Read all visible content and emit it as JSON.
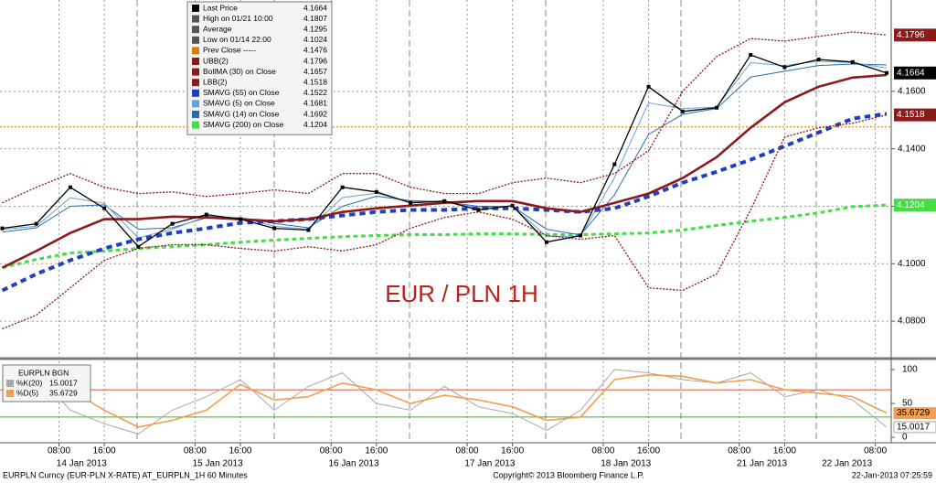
{
  "chart_data": {
    "type": "line",
    "title": "EUR / PLN 1H",
    "x": [
      -2,
      4,
      10,
      16,
      22,
      28,
      34,
      40,
      46,
      52,
      58,
      64,
      70,
      76,
      82,
      88,
      94,
      100,
      106,
      112,
      118,
      124,
      130,
      136,
      142,
      148,
      154
    ],
    "xlim": [
      -2.4,
      154.8
    ],
    "xticks": [
      {
        "value": 8,
        "label": "08:00"
      },
      {
        "value": 16,
        "label": "16:00"
      },
      {
        "value": 32,
        "label": "08:00"
      },
      {
        "value": 40,
        "label": "16:00"
      },
      {
        "value": 56,
        "label": "08:00"
      },
      {
        "value": 64,
        "label": "16:00"
      },
      {
        "value": 80,
        "label": "08:00"
      },
      {
        "value": 88,
        "label": "16:00"
      },
      {
        "value": 104,
        "label": "08:00"
      },
      {
        "value": 112,
        "label": "16:00"
      },
      {
        "value": 128,
        "label": "08:00"
      },
      {
        "value": 136,
        "label": "16:00"
      },
      {
        "value": 152,
        "label": "08:00"
      }
    ],
    "date_labels": [
      {
        "value": 12,
        "label": "14 Jan 2013"
      },
      {
        "value": 36,
        "label": "15 Jan 2013"
      },
      {
        "value": 60,
        "label": "16 Jan 2013"
      },
      {
        "value": 84,
        "label": "17 Jan 2013"
      },
      {
        "value": 108,
        "label": "18 Jan 2013"
      },
      {
        "value": 132,
        "label": "21 Jan 2013"
      },
      {
        "value": 147,
        "label": "22 Jan 2013"
      }
    ],
    "ylim": [
      4.0676,
      4.1918
    ],
    "yticks": [
      {
        "value": 4.08,
        "label": "4.0800"
      },
      {
        "value": 4.1,
        "label": "4.1000"
      },
      {
        "value": 4.12,
        "label": "4.1200"
      },
      {
        "value": 4.14,
        "label": "4.1400"
      },
      {
        "value": 4.16,
        "label": "4.1600"
      }
    ],
    "grid": true,
    "series": [
      {
        "name": "Last Price",
        "color": "#000000",
        "width": 1.3,
        "dash": false,
        "markers": true,
        "value_box": true,
        "legend_value": 4.1664,
        "values": [
          4.1123,
          4.1139,
          4.1266,
          4.1193,
          4.1059,
          4.1139,
          4.1171,
          4.1155,
          4.1123,
          4.1117,
          4.1266,
          4.125,
          4.1212,
          4.1218,
          4.1187,
          4.1202,
          4.1075,
          4.1098,
          4.1346,
          4.1616,
          4.153,
          4.1543,
          4.1727,
          4.1684,
          4.1711,
          4.1702,
          4.1664
        ]
      },
      {
        "name": "UBB(2)",
        "color": "#8b1a1a",
        "width": 1.3,
        "dash": true,
        "markers": false,
        "value_box": true,
        "legend_value": 4.1796,
        "values": [
          4.1212,
          4.1266,
          4.1314,
          4.1266,
          4.1244,
          4.125,
          4.1234,
          4.1244,
          4.1257,
          4.1244,
          4.1314,
          4.1314,
          4.1266,
          4.1244,
          4.1244,
          4.1282,
          4.1298,
          4.1282,
          4.1314,
          4.1393,
          4.16,
          4.1721,
          4.1784,
          4.1775,
          4.1791,
          4.1807,
          4.1796
        ]
      },
      {
        "name": "BollMA (30) on Close",
        "color": "#8b1a1a",
        "width": 2.6,
        "dash": false,
        "markers": false,
        "value_box": false,
        "legend_value": 4.1657,
        "values": [
          4.0986,
          4.1044,
          4.1107,
          4.1155,
          4.1155,
          4.1164,
          4.1161,
          4.1155,
          4.1148,
          4.1155,
          4.118,
          4.1193,
          4.1202,
          4.1212,
          4.1218,
          4.1218,
          4.1193,
          4.118,
          4.1212,
          4.1244,
          4.1298,
          4.1371,
          4.1473,
          4.1562,
          4.1616,
          4.1648,
          4.1657
        ]
      },
      {
        "name": "LBB(2)",
        "color": "#8b1a1a",
        "width": 1.3,
        "dash": true,
        "markers": false,
        "value_box": true,
        "legend_value": 4.1518,
        "values": [
          4.0773,
          4.0821,
          4.0916,
          4.1012,
          4.1053,
          4.1066,
          4.1066,
          4.1053,
          4.1044,
          4.1059,
          4.1044,
          4.1066,
          4.1123,
          4.1161,
          4.118,
          4.1155,
          4.1098,
          4.1085,
          4.1098,
          4.0916,
          4.0907,
          4.0964,
          4.1187,
          4.1441,
          4.1473,
          4.1489,
          4.1518
        ]
      },
      {
        "name": "SMAVG (55) on Close",
        "color": "#1f3fbf",
        "width": 4,
        "dash": true,
        "markers": false,
        "value_box": false,
        "legend_value": 4.1522,
        "values": [
          4.0907,
          4.0964,
          4.1012,
          4.1053,
          4.1085,
          4.1107,
          4.1123,
          4.1142,
          4.1148,
          4.1155,
          4.1168,
          4.118,
          4.1187,
          4.1187,
          4.1193,
          4.1193,
          4.1187,
          4.118,
          4.1193,
          4.1234,
          4.1282,
          4.132,
          4.1362,
          4.1409,
          4.1457,
          4.1505,
          4.1522
        ]
      },
      {
        "name": "SMAVG (5) on Close",
        "color": "#6a9fdc",
        "width": 1,
        "dash": false,
        "markers": false,
        "value_box": false,
        "legend_value": 4.1681,
        "values": [
          4.112,
          4.113,
          4.123,
          4.121,
          4.109,
          4.112,
          4.1165,
          4.116,
          4.113,
          4.112,
          4.123,
          4.1245,
          4.1215,
          4.1215,
          4.1195,
          4.12,
          4.1095,
          4.1095,
          4.13,
          4.156,
          4.154,
          4.1545,
          4.17,
          4.169,
          4.1705,
          4.17,
          4.1681
        ]
      },
      {
        "name": "SMAVG (14) on Close",
        "color": "#2a6ab0",
        "width": 1,
        "dash": false,
        "markers": false,
        "value_box": false,
        "legend_value": 4.1692,
        "values": [
          4.111,
          4.1125,
          4.12,
          4.1205,
          4.112,
          4.1125,
          4.116,
          4.116,
          4.114,
          4.1125,
          4.12,
          4.1235,
          4.122,
          4.1215,
          4.12,
          4.12,
          4.112,
          4.11,
          4.124,
          4.145,
          4.152,
          4.154,
          4.165,
          4.167,
          4.169,
          4.1695,
          4.1692
        ]
      },
      {
        "name": "SMAVG (200) on Close",
        "color": "#44dd44",
        "width": 3,
        "dash": true,
        "markers": false,
        "value_box": true,
        "legend_value": 4.1204,
        "values": [
          4.0986,
          4.1015,
          4.1037,
          4.1044,
          4.1053,
          4.1059,
          4.1066,
          4.1075,
          4.1082,
          4.1088,
          4.1094,
          4.1098,
          4.1101,
          4.1101,
          4.1104,
          4.1104,
          4.1101,
          4.1101,
          4.1104,
          4.1107,
          4.1117,
          4.1133,
          4.1148,
          4.1161,
          4.1177,
          4.1199,
          4.1204
        ]
      }
    ],
    "stats": [
      {
        "label": "High on 01/21 10:00",
        "value": 4.1807
      },
      {
        "label": "Average",
        "value": 4.1295
      },
      {
        "label": "Low on 01/14 22:00",
        "value": 4.1024
      }
    ],
    "prev_close": {
      "label": "Prev Close -----",
      "value": 4.1476,
      "color": "#e07b00"
    },
    "indicator": {
      "title": "EURPLN BGN",
      "ylim": [
        -8,
        112
      ],
      "yticks": [
        0,
        50,
        100
      ],
      "levels": [
        {
          "value": 70,
          "color": "#e05030"
        },
        {
          "value": 30,
          "color": "#3bb030"
        }
      ],
      "series": [
        {
          "name": "%K(20)",
          "color": "#a8a8a8",
          "legend_value": 15.0017,
          "values": [
            70,
            95,
            40,
            20,
            5,
            40,
            60,
            85,
            40,
            75,
            95,
            50,
            40,
            75,
            45,
            35,
            10,
            40,
            100,
            95,
            85,
            80,
            95,
            60,
            70,
            55,
            15.0017
          ]
        },
        {
          "name": "%D(5)",
          "color": "#f0a050",
          "legend_value": 35.6729,
          "values": [
            60,
            90,
            70,
            40,
            15,
            25,
            40,
            78,
            55,
            60,
            80,
            70,
            50,
            62,
            55,
            45,
            25,
            30,
            85,
            92,
            90,
            80,
            85,
            70,
            65,
            60,
            35.6729
          ]
        }
      ]
    },
    "footer": {
      "left": "EURPLN Curncy (EUR-PLN X-RATE) AT_EURPLN_1H  60 Minutes",
      "center": "Copyright© 2013 Bloomberg Finance L.P.",
      "right": "22-Jan-2013 07:25:59"
    }
  }
}
